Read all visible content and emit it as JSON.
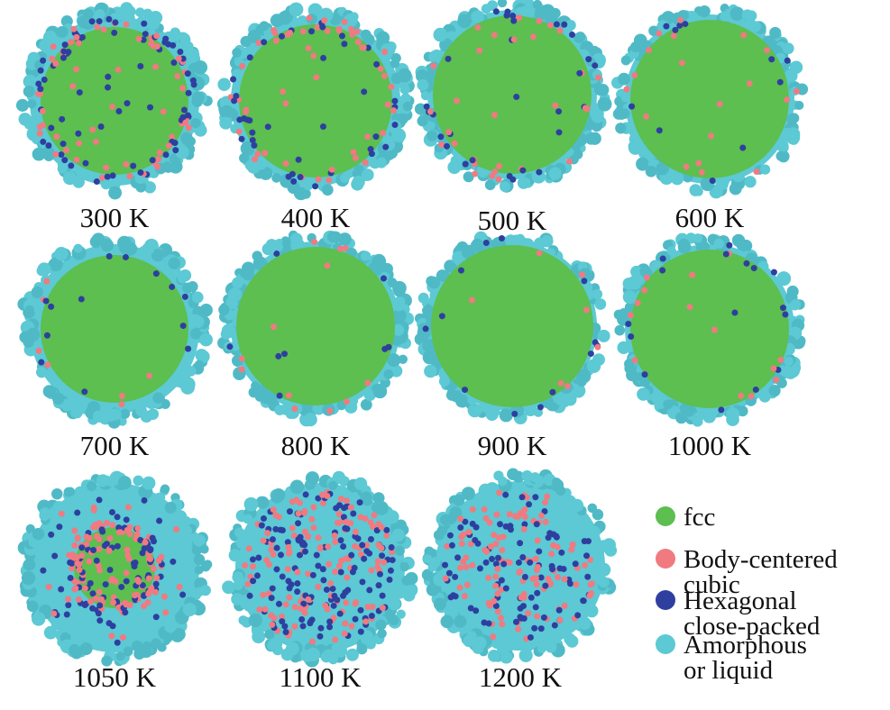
{
  "panels": [
    {
      "label": "300 K"
    },
    {
      "label": "400 K"
    },
    {
      "label": "500 K"
    },
    {
      "label": "600 K"
    },
    {
      "label": "700 K"
    },
    {
      "label": "800 K"
    },
    {
      "label": "900 K"
    },
    {
      "label": "1000 K"
    },
    {
      "label": "1050 K"
    },
    {
      "label": "1100 K"
    },
    {
      "label": "1200 K"
    }
  ],
  "legend": {
    "items": [
      {
        "lines": [
          "fcc"
        ],
        "color": "#5cbf4f"
      },
      {
        "lines": [
          "Body-centered",
          "cubic"
        ],
        "color": "#f07a80"
      },
      {
        "lines": [
          "Hexagonal",
          "close-packed"
        ],
        "color": "#2e3fa0"
      },
      {
        "lines": [
          "Amorphous",
          "or liquid"
        ],
        "color": "#5cc9d4"
      }
    ]
  }
}
